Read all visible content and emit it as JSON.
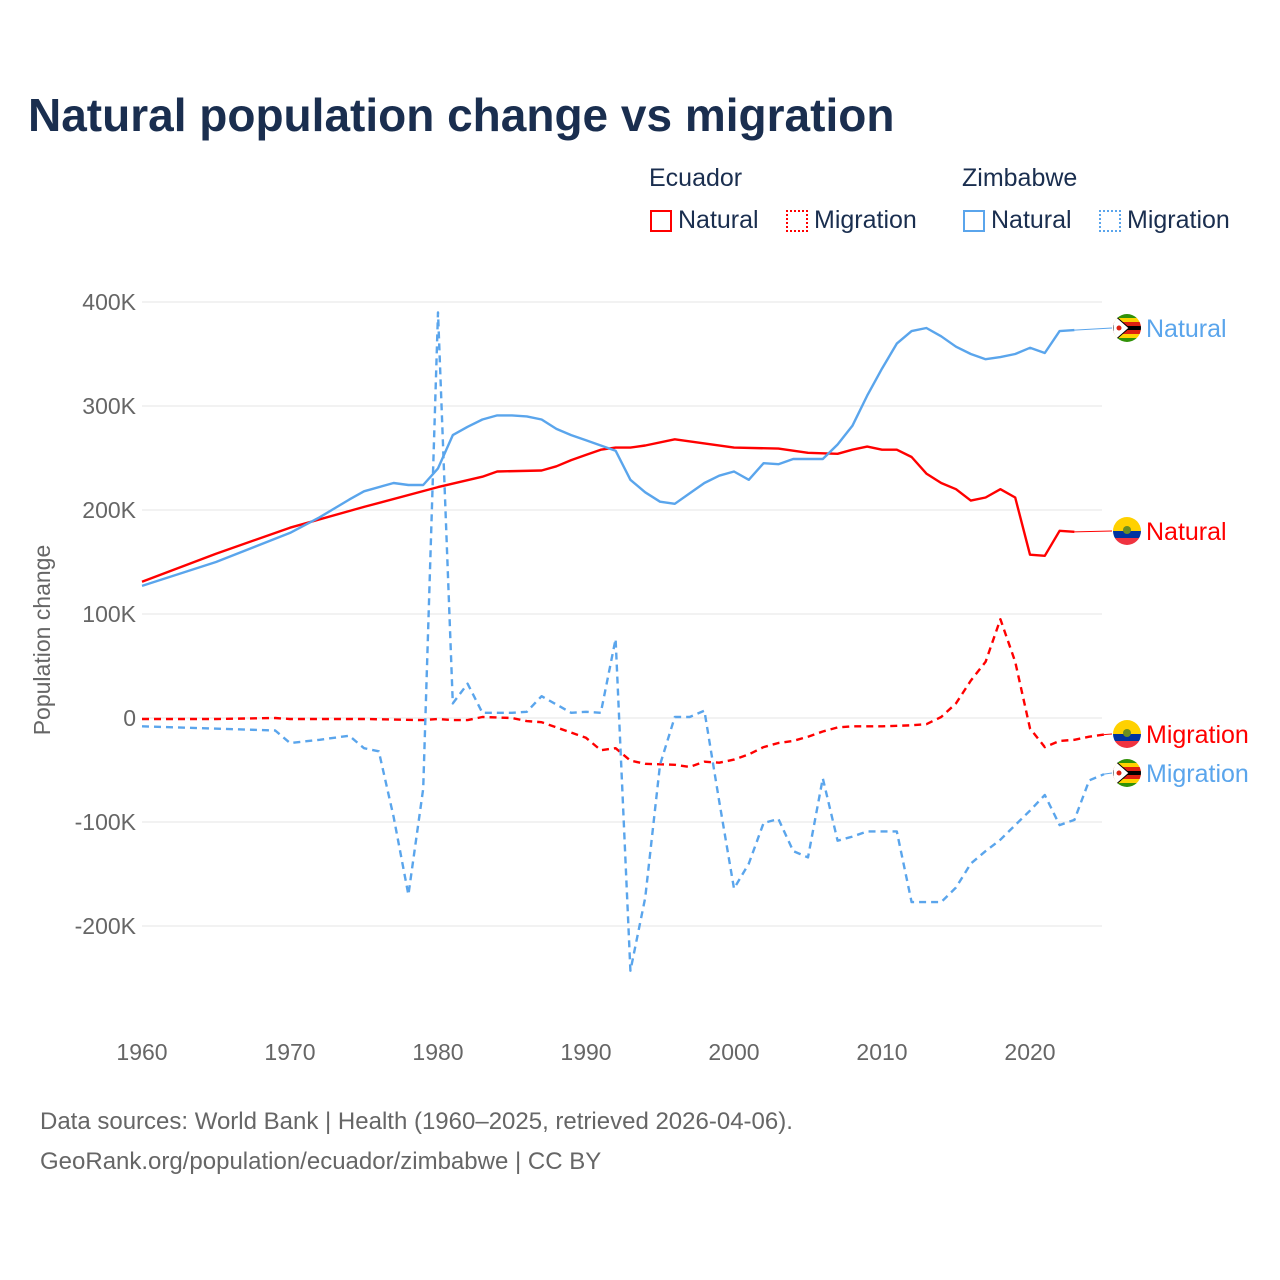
{
  "title": "Natural population change vs migration",
  "legend": {
    "groups": [
      {
        "country": "Ecuador",
        "items": [
          {
            "label": "Natural",
            "style": "solid",
            "color": "#ff0000"
          },
          {
            "label": "Migration",
            "style": "dotted",
            "color": "#ff0000"
          }
        ]
      },
      {
        "country": "Zimbabwe",
        "items": [
          {
            "label": "Natural",
            "style": "solid",
            "color": "#5aa5ec"
          },
          {
            "label": "Migration",
            "style": "dotted",
            "color": "#5aa5ec"
          }
        ]
      }
    ]
  },
  "chart_data": {
    "type": "line",
    "title": "Natural population change vs migration",
    "xlabel": "",
    "ylabel": "Population change",
    "xlim": [
      1960,
      2025
    ],
    "ylim": [
      -280000,
      420000
    ],
    "xticks": [
      1960,
      1970,
      1980,
      1990,
      2000,
      2010,
      2020
    ],
    "yticks": [
      -200000,
      -100000,
      0,
      100000,
      200000,
      300000,
      400000
    ],
    "ytick_labels": [
      "-200K",
      "-100K",
      "0",
      "100K",
      "200K",
      "300K",
      "400K"
    ],
    "grid": true,
    "series": [
      {
        "name": "Ecuador Natural",
        "end_label": "Natural",
        "color": "#ff0000",
        "dash": false,
        "flag": "ecuador",
        "points": [
          [
            1960,
            131
          ],
          [
            1965,
            158
          ],
          [
            1970,
            183
          ],
          [
            1975,
            203
          ],
          [
            1980,
            222
          ],
          [
            1983,
            232
          ],
          [
            1984,
            237
          ],
          [
            1987,
            238
          ],
          [
            1988,
            242
          ],
          [
            1989,
            248
          ],
          [
            1990,
            253
          ],
          [
            1991,
            258
          ],
          [
            1992,
            260
          ],
          [
            1993,
            260
          ],
          [
            1994,
            262
          ],
          [
            1996,
            268
          ],
          [
            1998,
            264
          ],
          [
            2000,
            260
          ],
          [
            2003,
            259
          ],
          [
            2005,
            255
          ],
          [
            2007,
            254
          ],
          [
            2008,
            258
          ],
          [
            2009,
            261
          ],
          [
            2010,
            258
          ],
          [
            2011,
            258
          ],
          [
            2012,
            251
          ],
          [
            2013,
            235
          ],
          [
            2014,
            226
          ],
          [
            2015,
            220
          ],
          [
            2016,
            209
          ],
          [
            2017,
            212
          ],
          [
            2018,
            220
          ],
          [
            2019,
            212
          ],
          [
            2020,
            157
          ],
          [
            2021,
            156
          ],
          [
            2022,
            180
          ],
          [
            2023,
            179
          ]
        ]
      },
      {
        "name": "Ecuador Migration",
        "end_label": "Migration",
        "color": "#ff0000",
        "dash": true,
        "flag": "ecuador",
        "points": [
          [
            1960,
            -1
          ],
          [
            1965,
            -1
          ],
          [
            1969,
            0
          ],
          [
            1970,
            -1
          ],
          [
            1975,
            -1
          ],
          [
            1979,
            -2
          ],
          [
            1980,
            -1
          ],
          [
            1981,
            -2
          ],
          [
            1982,
            -2
          ],
          [
            1983,
            1
          ],
          [
            1985,
            0
          ],
          [
            1986,
            -3
          ],
          [
            1987,
            -4
          ],
          [
            1988,
            -9
          ],
          [
            1989,
            -14
          ],
          [
            1990,
            -19
          ],
          [
            1991,
            -31
          ],
          [
            1992,
            -29
          ],
          [
            1993,
            -41
          ],
          [
            1994,
            -44
          ],
          [
            1996,
            -45
          ],
          [
            1997,
            -47
          ],
          [
            1998,
            -42
          ],
          [
            1999,
            -43
          ],
          [
            2000,
            -40
          ],
          [
            2001,
            -35
          ],
          [
            2002,
            -28
          ],
          [
            2003,
            -24
          ],
          [
            2004,
            -22
          ],
          [
            2005,
            -18
          ],
          [
            2006,
            -13
          ],
          [
            2007,
            -9
          ],
          [
            2008,
            -8
          ],
          [
            2010,
            -8
          ],
          [
            2012,
            -7
          ],
          [
            2013,
            -6
          ],
          [
            2014,
            1
          ],
          [
            2015,
            14
          ],
          [
            2016,
            36
          ],
          [
            2017,
            54
          ],
          [
            2018,
            95
          ],
          [
            2019,
            54
          ],
          [
            2020,
            -10
          ],
          [
            2021,
            -28
          ],
          [
            2022,
            -22
          ],
          [
            2023,
            -21
          ],
          [
            2024,
            -18
          ],
          [
            2025,
            -16
          ]
        ]
      },
      {
        "name": "Zimbabwe Natural",
        "end_label": "Natural",
        "color": "#5aa5ec",
        "dash": false,
        "flag": "zimbabwe",
        "points": [
          [
            1960,
            127
          ],
          [
            1965,
            150
          ],
          [
            1970,
            178
          ],
          [
            1972,
            193
          ],
          [
            1974,
            210
          ],
          [
            1975,
            218
          ],
          [
            1977,
            226
          ],
          [
            1978,
            224
          ],
          [
            1979,
            224
          ],
          [
            1980,
            240
          ],
          [
            1981,
            272
          ],
          [
            1982,
            280
          ],
          [
            1983,
            287
          ],
          [
            1984,
            291
          ],
          [
            1985,
            291
          ],
          [
            1986,
            290
          ],
          [
            1987,
            287
          ],
          [
            1988,
            278
          ],
          [
            1989,
            272
          ],
          [
            1990,
            267
          ],
          [
            1991,
            262
          ],
          [
            1992,
            257
          ],
          [
            1993,
            229
          ],
          [
            1994,
            217
          ],
          [
            1995,
            208
          ],
          [
            1996,
            206
          ],
          [
            1997,
            216
          ],
          [
            1998,
            226
          ],
          [
            1999,
            233
          ],
          [
            2000,
            237
          ],
          [
            2001,
            229
          ],
          [
            2002,
            245
          ],
          [
            2003,
            244
          ],
          [
            2004,
            249
          ],
          [
            2006,
            249
          ],
          [
            2007,
            263
          ],
          [
            2008,
            281
          ],
          [
            2009,
            310
          ],
          [
            2010,
            336
          ],
          [
            2011,
            360
          ],
          [
            2012,
            372
          ],
          [
            2013,
            375
          ],
          [
            2014,
            367
          ],
          [
            2015,
            357
          ],
          [
            2016,
            350
          ],
          [
            2017,
            345
          ],
          [
            2018,
            347
          ],
          [
            2019,
            350
          ],
          [
            2020,
            356
          ],
          [
            2021,
            351
          ],
          [
            2022,
            372
          ],
          [
            2023,
            373
          ]
        ]
      },
      {
        "name": "Zimbabwe Migration",
        "end_label": "Migration",
        "color": "#5aa5ec",
        "dash": true,
        "flag": "zimbabwe",
        "points": [
          [
            1960,
            -8
          ],
          [
            1969,
            -12
          ],
          [
            1970,
            -24
          ],
          [
            1972,
            -21
          ],
          [
            1974,
            -17
          ],
          [
            1975,
            -29
          ],
          [
            1976,
            -32
          ],
          [
            1977,
            -95
          ],
          [
            1978,
            -170
          ],
          [
            1979,
            -68
          ],
          [
            1980,
            390
          ],
          [
            1981,
            14
          ],
          [
            1982,
            33
          ],
          [
            1983,
            5
          ],
          [
            1985,
            5
          ],
          [
            1986,
            6
          ],
          [
            1987,
            21
          ],
          [
            1988,
            13
          ],
          [
            1989,
            5
          ],
          [
            1990,
            6
          ],
          [
            1991,
            5
          ],
          [
            1992,
            76
          ],
          [
            1993,
            -243
          ],
          [
            1994,
            -173
          ],
          [
            1995,
            -45
          ],
          [
            1996,
            1
          ],
          [
            1997,
            1
          ],
          [
            1998,
            7
          ],
          [
            1999,
            -80
          ],
          [
            2000,
            -164
          ],
          [
            2001,
            -140
          ],
          [
            2002,
            -101
          ],
          [
            2003,
            -97
          ],
          [
            2004,
            -128
          ],
          [
            2005,
            -134
          ],
          [
            2006,
            -58
          ],
          [
            2007,
            -118
          ],
          [
            2008,
            -114
          ],
          [
            2009,
            -109
          ],
          [
            2011,
            -109
          ],
          [
            2012,
            -177
          ],
          [
            2014,
            -177
          ],
          [
            2015,
            -163
          ],
          [
            2016,
            -140
          ],
          [
            2017,
            -128
          ],
          [
            2018,
            -117
          ],
          [
            2019,
            -103
          ],
          [
            2020,
            -89
          ],
          [
            2021,
            -74
          ],
          [
            2022,
            -103
          ],
          [
            2023,
            -98
          ],
          [
            2024,
            -60
          ],
          [
            2025,
            -54
          ]
        ]
      }
    ],
    "units_note": "point y values in thousands"
  },
  "footer": {
    "line1": "Data sources: World Bank | Health (1960–2025, retrieved 2026-04-06).",
    "line2": "GeoRank.org/population/ecuador/zimbabwe | CC BY"
  }
}
